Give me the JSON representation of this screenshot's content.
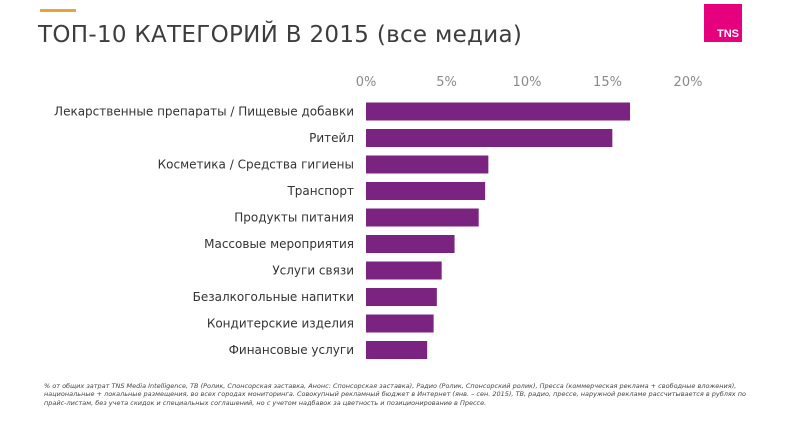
{
  "header": {
    "title": "ТОП-10 КАТЕГОРИЙ В 2015 (все медиа)",
    "logo_text": "TNS"
  },
  "colors": {
    "bar": "#7b2380",
    "logo": "#e6007e",
    "accent_line": "#e8a33d"
  },
  "chart_data": {
    "type": "bar",
    "orientation": "horizontal",
    "title": "ТОП-10 КАТЕГОРИЙ В 2015 (все медиа)",
    "categories": [
      "Лекарственные препараты / Пищевые добавки",
      "Ритейл",
      "Косметика / Средства гигиены",
      "Транспорт",
      "Продукты питания",
      "Массовые мероприятия",
      "Услуги связи",
      "Безалкогольные напитки",
      "Кондитерские изделия",
      "Финансовые услуги"
    ],
    "values": [
      16.4,
      15.3,
      7.6,
      7.4,
      7.0,
      5.5,
      4.7,
      4.4,
      4.2,
      3.8
    ],
    "xlim": [
      0,
      20
    ],
    "ticks": [
      "0%",
      "5%",
      "10%",
      "15%",
      "20%"
    ],
    "axis_position": "top",
    "grid": false,
    "legend": "none"
  },
  "footnote": "% от общих затрат TNS Media Intelligence, ТВ (Ролик, Спонсорская заставка, Анонс: Спонсорская заставка), Радио (Ролик, Спонсорский ролик), Пресса (коммерческая реклама + свободные вложения), национальные + локальные размещения, во всех городах мониторинга. Совокупный рекламный бюджет в Интернет (янв. – сен. 2015), ТВ, радио, прессе, наружной рекламе рассчитывается в рублях по прайс-листам, без учета скидок и специальных соглашений, но с учетом надбавок за цветность и позиционирование в Прессе."
}
